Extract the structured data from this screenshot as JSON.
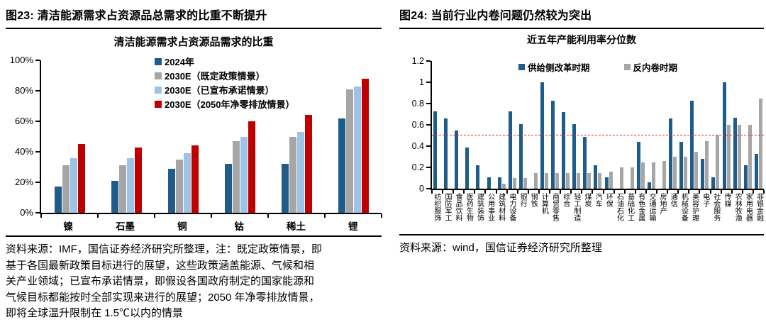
{
  "colors": {
    "navy": "#1f5c8a",
    "gray": "#a6a6a6",
    "light_blue": "#9dc3e6",
    "dark_red": "#c00000",
    "refline_red": "#ff2020"
  },
  "left_panel": {
    "header": "图23: 清洁能源需求占资源品总需求的比重不断提升",
    "source_lines": [
      "资料来源：IMF，国信证券经济研究所整理，注：既定政策情景，即",
      "基于各国最新政策目标进行的展望，这些政策涵盖能源、气候和相",
      "关产业领域；已宣布承诺情景，即假设各国政府制定的国家能源和",
      "气候目标都能按时全部实现来进行的展望；2050 年净零排放情景，",
      "即将全球温升限制在 1.5℃以内的情景"
    ]
  },
  "right_panel": {
    "header": "图24: 当前行业内卷问题仍然较为突出",
    "source": "资料来源：wind，国信证券经济研究所整理"
  },
  "chart_data": [
    {
      "type": "bar",
      "title": "清洁能源需求占资源品需求的比重",
      "categories": [
        "镍",
        "石墨",
        "铜",
        "钴",
        "稀土",
        "锂"
      ],
      "series": [
        {
          "name": "2024年",
          "color": "#1f5c8a",
          "values": [
            17,
            21,
            29,
            32,
            32,
            62
          ]
        },
        {
          "name": "2030E（既定政策情景）",
          "color": "#a6a6a6",
          "values": [
            31,
            31,
            35,
            47,
            50,
            81
          ]
        },
        {
          "name": "2030E（已宣布承诺情景）",
          "color": "#9dc3e6",
          "values": [
            36,
            36,
            39,
            50,
            53,
            83
          ]
        },
        {
          "name": "2030E（2050年净零排放情景）",
          "color": "#c00000",
          "values": [
            45,
            43,
            44,
            60,
            64,
            88
          ]
        }
      ],
      "ylim": [
        0,
        100
      ],
      "ytick_vals": [
        0,
        20,
        40,
        60,
        80,
        100
      ],
      "ytick_labels": [
        "0%",
        "20%",
        "40%",
        "60%",
        "80%",
        "100%"
      ],
      "grid": false,
      "legend_position": "top-stacked"
    },
    {
      "type": "bar",
      "title": "近五年产能利用率分位数",
      "categories": [
        "纺织服饰",
        "国防军工",
        "食品饮料",
        "医药生物",
        "建筑装饰",
        "公用事业",
        "建筑材料",
        "电力设备",
        "银行",
        "钢铁",
        "计算机",
        "商贸零售",
        "综合",
        "轻工制造",
        "煤炭",
        "汽车",
        "环保",
        "石油石化",
        "基础化工",
        "有色金属",
        "交通运输",
        "房地产",
        "通信",
        "机械设备",
        "美容护理",
        "电子",
        "社会服务",
        "传媒",
        "农林牧渔",
        "家用电器",
        "非银金融"
      ],
      "series": [
        {
          "name": "供给侧改革时期",
          "color": "#1f5c8a",
          "values": [
            0.73,
            0.66,
            0.55,
            0.39,
            0.22,
            0.11,
            0.11,
            0.73,
            0.61,
            0,
            1.0,
            0.83,
            0.72,
            0.61,
            0.49,
            0.22,
            0.11,
            0,
            0,
            0.44,
            0.06,
            0,
            0.66,
            0.44,
            0.83,
            0.28,
            0.11,
            1.0,
            0.67,
            0.22,
            0.33
          ]
        },
        {
          "name": "反内卷时期",
          "color": "#a6a6a6",
          "values": [
            0,
            0,
            0,
            0,
            0,
            0,
            0.05,
            0.1,
            0.1,
            0.15,
            0.15,
            0.15,
            0.15,
            0.15,
            0.15,
            0.15,
            0.16,
            0.2,
            0.2,
            0.25,
            0.25,
            0.26,
            0.3,
            0.3,
            0.35,
            0.45,
            0.5,
            0.6,
            0.6,
            0.6,
            0.85
          ]
        }
      ],
      "ylim": [
        0,
        1.2
      ],
      "ytick_vals": [
        0,
        0.2,
        0.4,
        0.6,
        0.8,
        1,
        1.2
      ],
      "ytick_labels": [
        "0",
        "0.2",
        "0.4",
        "0.6",
        "0.8",
        "1",
        "1.2"
      ],
      "refline": {
        "value": 0.5,
        "color": "#ff2020",
        "style": "dashed"
      },
      "grid": false,
      "legend_position": "top-horizontal"
    }
  ]
}
